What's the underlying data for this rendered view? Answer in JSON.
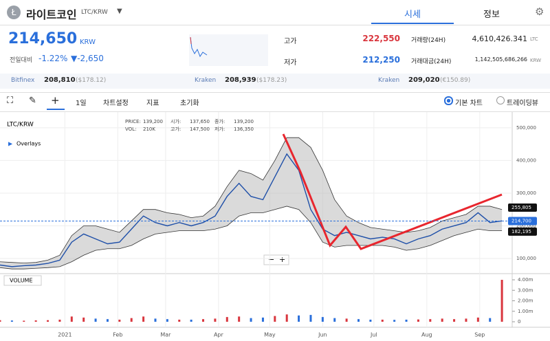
{
  "header": {
    "title": "라이트코인",
    "pair": "LTC/KRW",
    "tabs": [
      "시세",
      "정보"
    ]
  },
  "price": {
    "value": "214,650",
    "unit": "KRW",
    "change_label": "전일대비",
    "change_pct": "-1.22%",
    "change_abs": "▼-2,650"
  },
  "stats": {
    "high_label": "고가",
    "high": "222,550",
    "low_label": "저가",
    "low": "212,250",
    "volume_label": "거래량(24H)",
    "volume": "4,610,426.341",
    "volume_unit": "LTC",
    "amount_label": "거래대금(24H)",
    "amount": "1,142,505,686,266",
    "amount_unit": "KRW"
  },
  "exchanges": [
    {
      "name": "Bitfinex",
      "price": "208,810",
      "fx": "($178.12)"
    },
    {
      "name": "Kraken",
      "price": "208,939",
      "fx": "($178.23)"
    },
    {
      "name": "Kraken",
      "price": "209,020",
      "fx": "(€150.89)"
    }
  ],
  "toolbar": {
    "items": [
      "1일",
      "차트설정",
      "지표",
      "초기화"
    ],
    "options": [
      "기본 차트",
      "트레이딩뷰"
    ]
  },
  "chart_data": {
    "type": "line",
    "title": "LTC/KRW",
    "overlays": "Overlays",
    "info": [
      [
        "PRICE:",
        "139,200",
        "시가:",
        "137,650",
        "종가:",
        "139,200"
      ],
      [
        "VOL:",
        "210K",
        "고가:",
        "147,500",
        "저가:",
        "136,350"
      ]
    ],
    "x": [
      0,
      7,
      14,
      21,
      28,
      35,
      42,
      49,
      56,
      63,
      70,
      77,
      84,
      91,
      98,
      105,
      112,
      119,
      126,
      133,
      140,
      147,
      154,
      161,
      168,
      175,
      182,
      189,
      196,
      203,
      210,
      217,
      224,
      231,
      238,
      245,
      252,
      259,
      266,
      273,
      280,
      287,
      294
    ],
    "xlim": [
      0,
      300
    ],
    "xticks": [
      {
        "value": 38,
        "label": "2021"
      },
      {
        "value": 69,
        "label": "Feb"
      },
      {
        "value": 97,
        "label": "Mar"
      },
      {
        "value": 128,
        "label": "Apr"
      },
      {
        "value": 158,
        "label": "May"
      },
      {
        "value": 189,
        "label": "Jun"
      },
      {
        "value": 219,
        "label": "Jul"
      },
      {
        "value": 250,
        "label": "Aug"
      },
      {
        "value": 281,
        "label": "Sep"
      }
    ],
    "ylim": [
      60000,
      544000
    ],
    "yticks": [
      {
        "value": 100000,
        "label": "100,000"
      },
      {
        "value": 200000,
        "label": "200,000"
      },
      {
        "value": 300000,
        "label": "300,000"
      },
      {
        "value": 400000,
        "label": "400,000"
      },
      {
        "value": 500000,
        "label": "500,000"
      }
    ],
    "series": [
      {
        "name": "close",
        "color": "#1e4fa8",
        "values": [
          80000,
          75000,
          78000,
          80000,
          85000,
          95000,
          150000,
          175000,
          160000,
          145000,
          150000,
          190000,
          230000,
          210000,
          200000,
          210000,
          200000,
          210000,
          230000,
          290000,
          330000,
          290000,
          280000,
          350000,
          420000,
          370000,
          250000,
          190000,
          170000,
          180000,
          170000,
          160000,
          165000,
          160000,
          145000,
          160000,
          170000,
          190000,
          200000,
          210000,
          240000,
          210000,
          215000
        ]
      },
      {
        "name": "upper",
        "color": "#333333",
        "values": [
          90000,
          88000,
          86000,
          88000,
          95000,
          110000,
          170000,
          200000,
          200000,
          190000,
          180000,
          215000,
          250000,
          250000,
          240000,
          235000,
          225000,
          230000,
          260000,
          320000,
          370000,
          360000,
          340000,
          400000,
          470000,
          470000,
          440000,
          370000,
          280000,
          230000,
          210000,
          195000,
          190000,
          185000,
          180000,
          185000,
          195000,
          215000,
          225000,
          235000,
          260000,
          260000,
          250000
        ]
      },
      {
        "name": "lower",
        "color": "#333333",
        "values": [
          72000,
          68000,
          68000,
          70000,
          72000,
          75000,
          90000,
          110000,
          125000,
          130000,
          130000,
          140000,
          160000,
          175000,
          180000,
          185000,
          185000,
          185000,
          190000,
          200000,
          230000,
          240000,
          240000,
          250000,
          260000,
          250000,
          210000,
          150000,
          135000,
          140000,
          140000,
          140000,
          140000,
          135000,
          125000,
          130000,
          140000,
          155000,
          170000,
          180000,
          190000,
          185000,
          185000
        ]
      }
    ],
    "price_tags": [
      {
        "value": 255805,
        "label": "255,805"
      },
      {
        "value": 214700,
        "label": "214,700"
      },
      {
        "value": 182195,
        "label": "182,195"
      }
    ],
    "volume": {
      "title": "VOLUME",
      "ylim": [
        0,
        4460000
      ],
      "yticks": [
        0,
        {
          "value": 1000000,
          "label": "1.00m"
        },
        {
          "value": 2000000,
          "label": "2.00m"
        },
        {
          "value": 3000000,
          "label": "3.00m"
        },
        {
          "value": 4000000,
          "label": "4.00m"
        }
      ],
      "values": [
        150000,
        120000,
        100000,
        130000,
        150000,
        200000,
        500000,
        400000,
        300000,
        250000,
        200000,
        350000,
        500000,
        300000,
        250000,
        200000,
        200000,
        250000,
        300000,
        450000,
        500000,
        350000,
        400000,
        550000,
        700000,
        600000,
        650000,
        450000,
        350000,
        300000,
        250000,
        200000,
        200000,
        180000,
        200000,
        220000,
        250000,
        300000,
        250000,
        300000,
        400000,
        350000,
        4000000
      ],
      "up_color": "#d9363e",
      "down_color": "#2a6fdb"
    }
  }
}
